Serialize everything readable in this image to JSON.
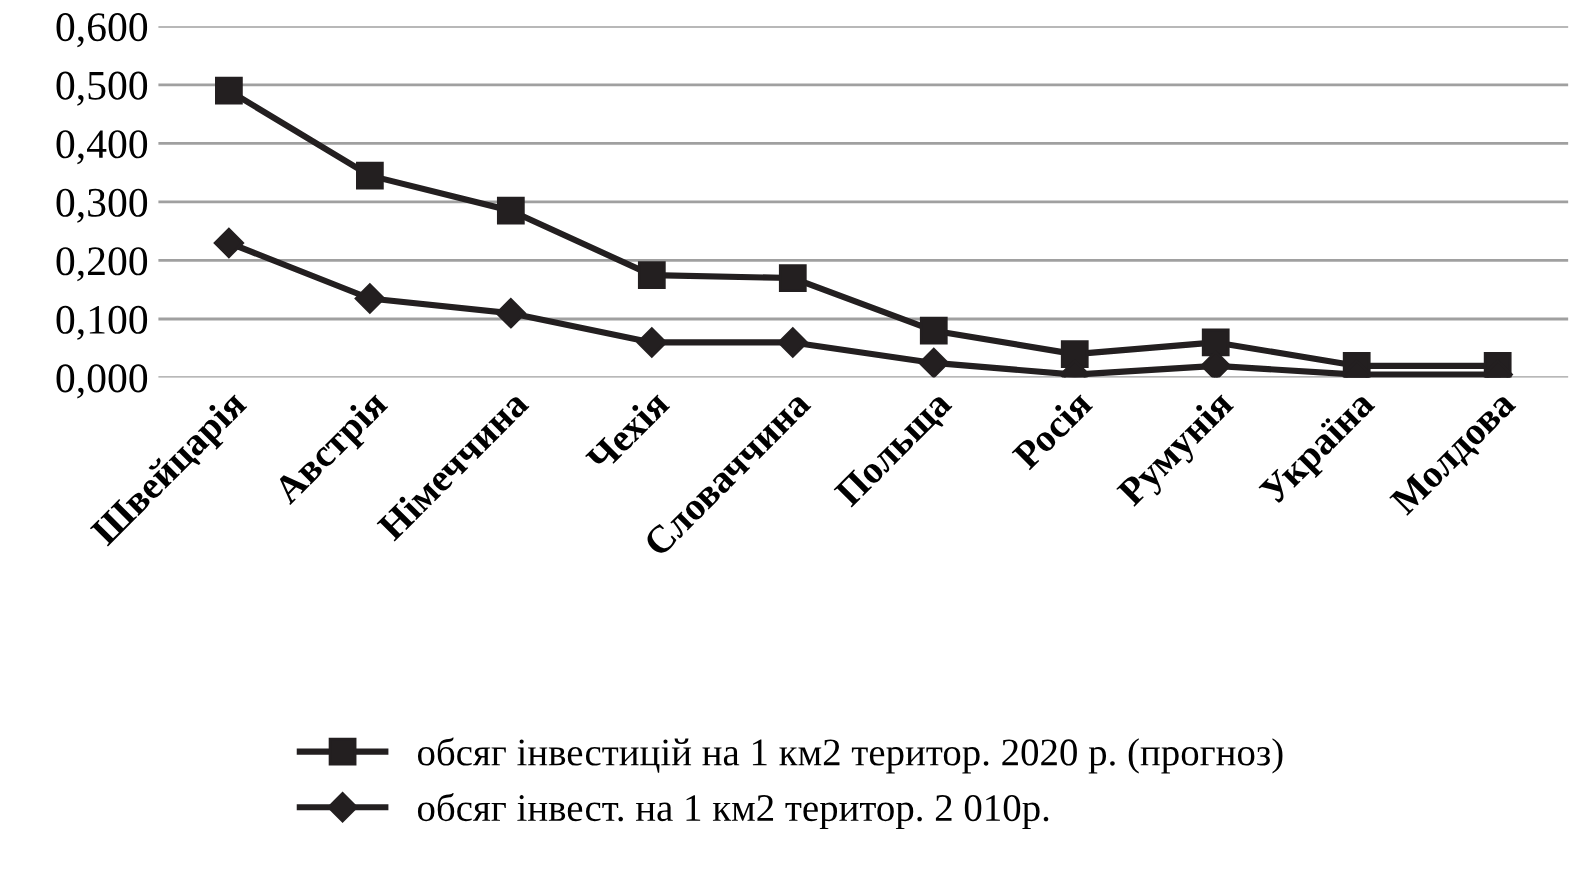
{
  "chart_data": {
    "type": "line",
    "categories": [
      "Швейцарія",
      "Австрія",
      "Німеччина",
      "Чехія",
      "Словаччина",
      "Польща",
      "Росія",
      "Румунія",
      "Україна",
      "Молдова"
    ],
    "series": [
      {
        "name": "обсяг інвестицій на 1 км2 територ. 2020 р. (прогноз)",
        "color": "#231f20",
        "marker": "square",
        "values": [
          0.49,
          0.345,
          0.285,
          0.175,
          0.17,
          0.08,
          0.04,
          0.06,
          0.02,
          0.02
        ]
      },
      {
        "name": "обсяг інвест. на 1 км2 територ. 2 010р.",
        "color": "#231f20",
        "marker": "diamond",
        "values": [
          0.23,
          0.135,
          0.11,
          0.06,
          0.06,
          0.025,
          0.005,
          0.02,
          0.005,
          0.005
        ]
      }
    ],
    "ylim": [
      0,
      0.6
    ],
    "yticks": [
      {
        "value": 0,
        "label": "0,000"
      },
      {
        "value": 0.1,
        "label": "0,100"
      },
      {
        "value": 0.2,
        "label": "0,200"
      },
      {
        "value": 0.3,
        "label": "0,300"
      },
      {
        "value": 0.4,
        "label": "0,400"
      },
      {
        "value": 0.5,
        "label": "0,500"
      },
      {
        "value": 0.6,
        "label": "0,600"
      }
    ],
    "grid": "y",
    "legend": "bottom",
    "line_style": "solid"
  }
}
